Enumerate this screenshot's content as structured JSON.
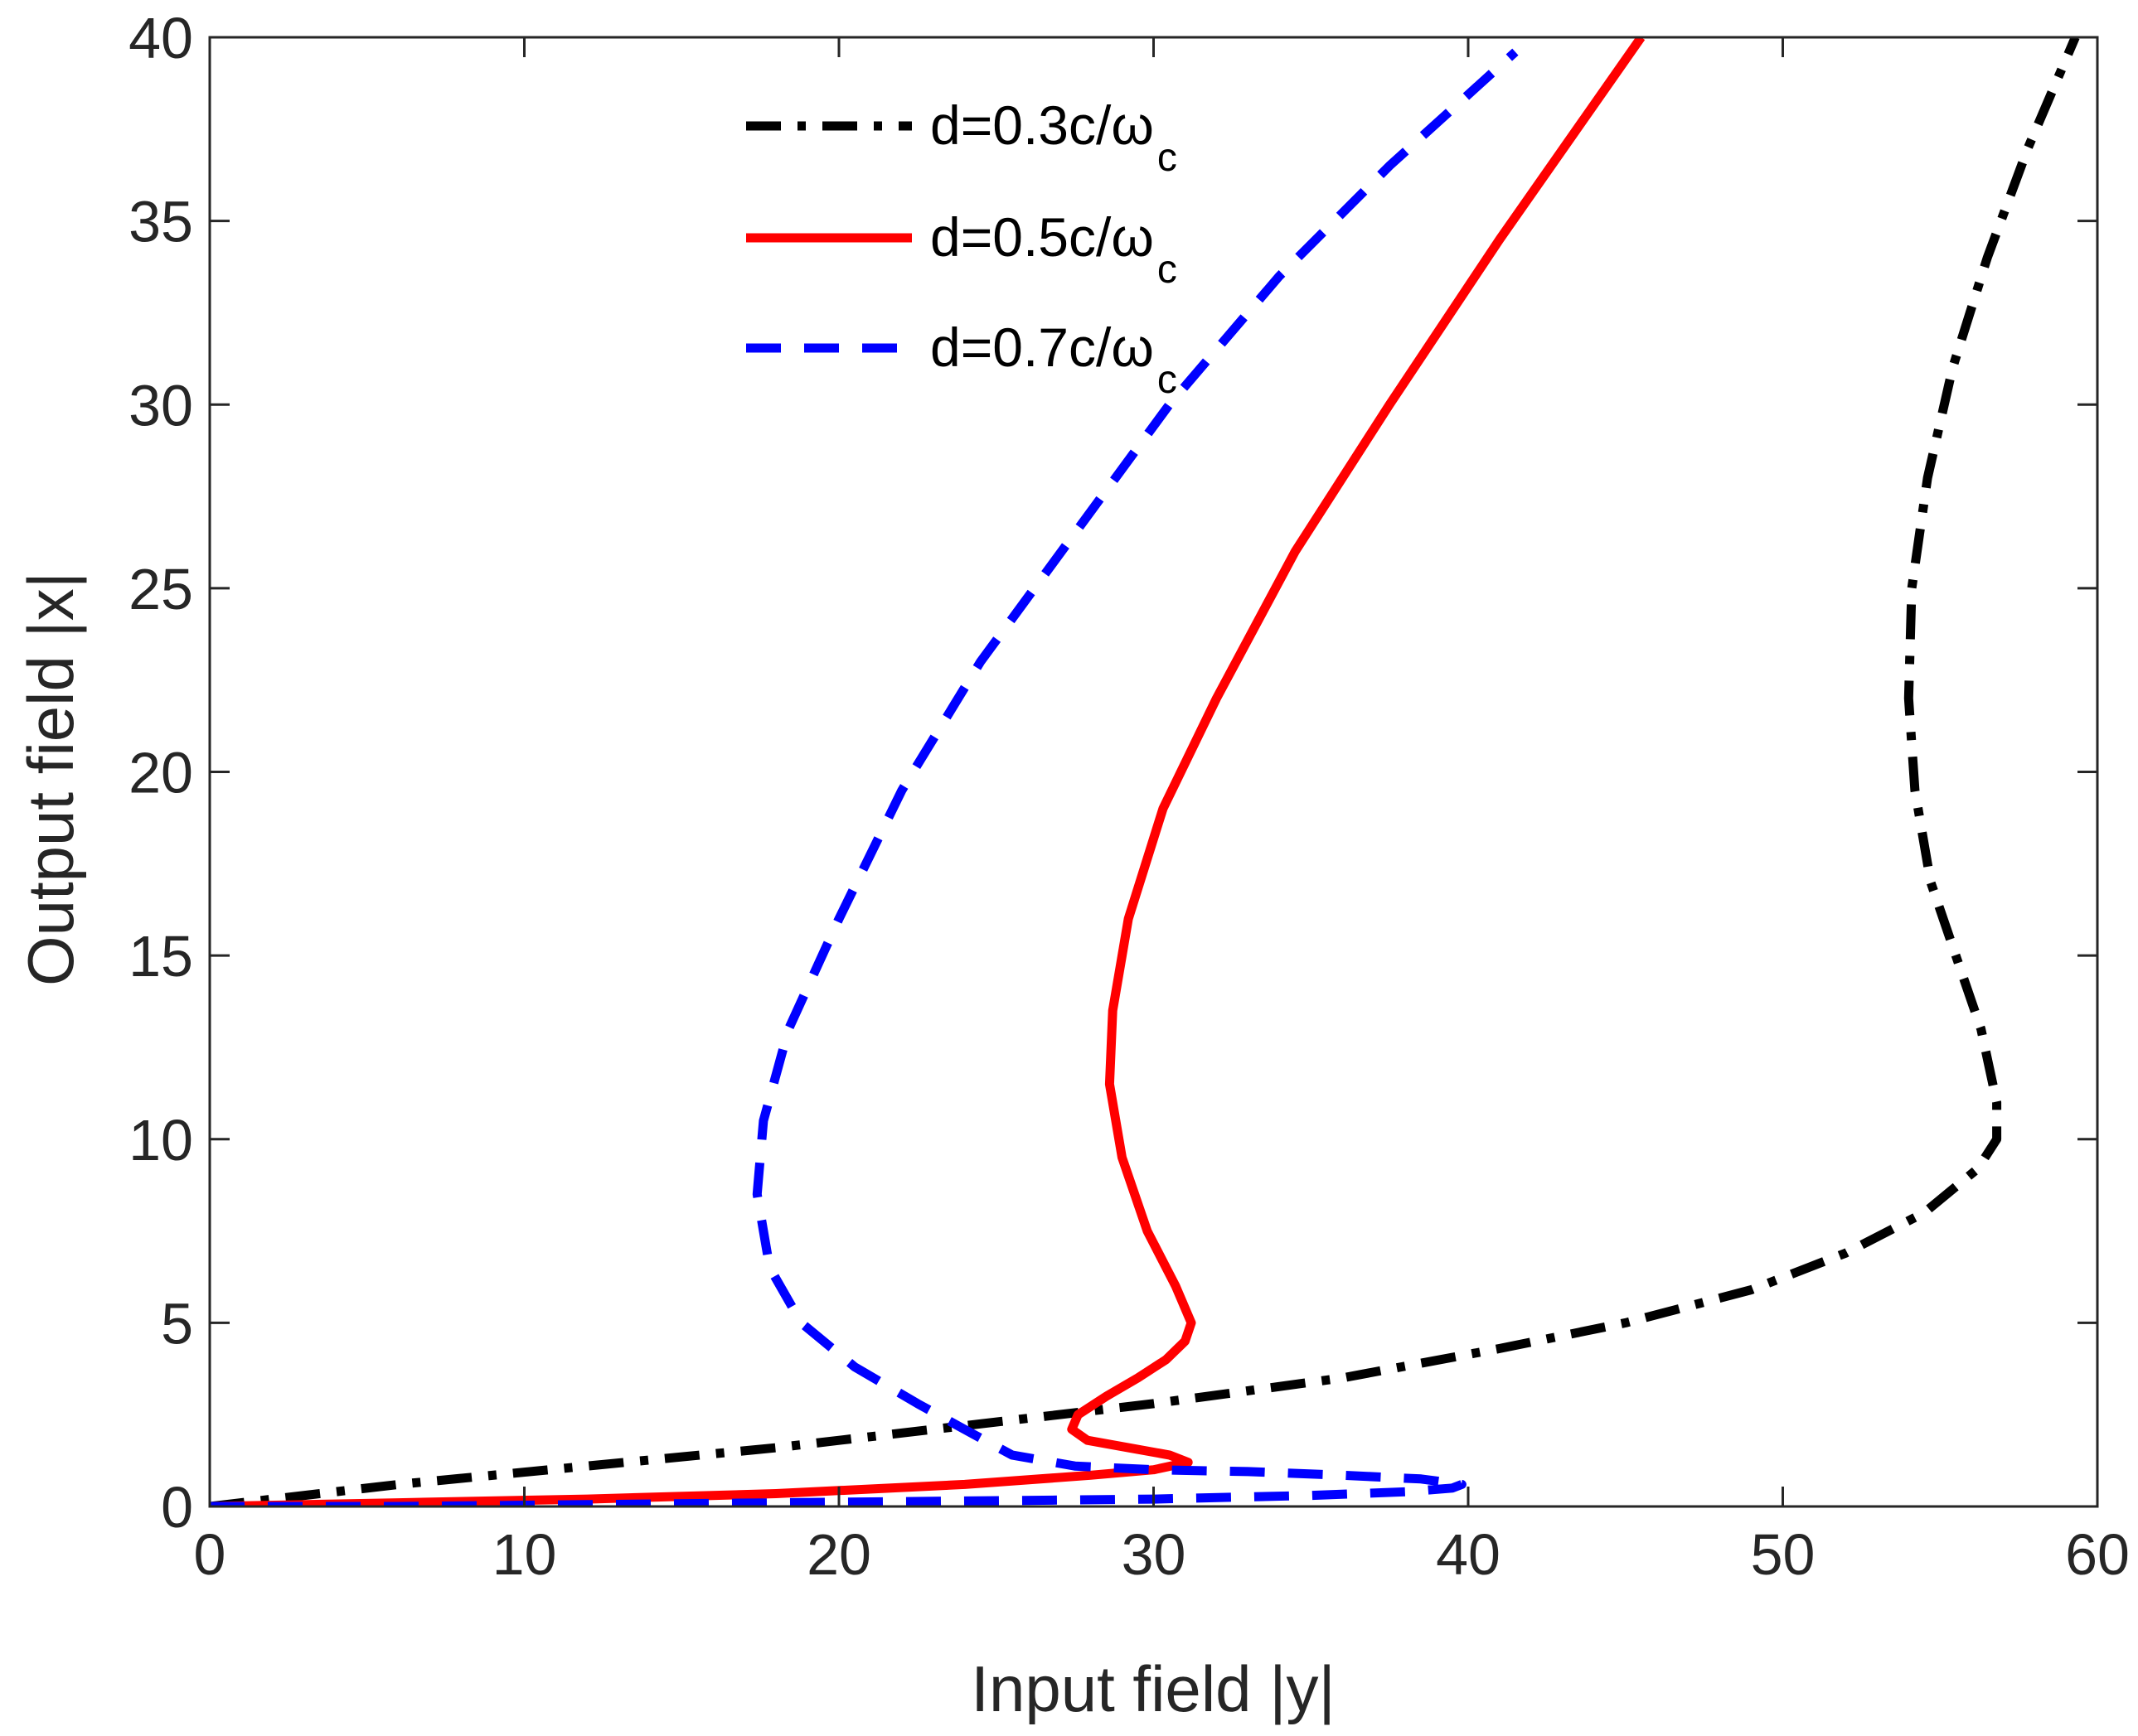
{
  "chart_data": {
    "type": "line",
    "title": "",
    "xlabel": "Input field |y|",
    "ylabel": "Output field |x|",
    "xlim": [
      0,
      60
    ],
    "ylim": [
      0,
      40
    ],
    "xticks": [
      "0",
      "10",
      "20",
      "30",
      "40",
      "50",
      "60"
    ],
    "yticks": [
      "0",
      "5",
      "10",
      "15",
      "20",
      "25",
      "30",
      "35",
      "40"
    ],
    "grid": false,
    "legend_position": "top-center",
    "series": [
      {
        "name": "d=0.3c/ωc",
        "label_main": "d=0.3c/ω",
        "label_sub": "c",
        "color": "#000000",
        "style": "dash-dot",
        "x": [
          0,
          6,
          12,
          18,
          24,
          30,
          36,
          41,
          45,
          49,
          52,
          54.5,
          56.2,
          56.8,
          56.8,
          56.3,
          55.5,
          54.7,
          54.2,
          54.0,
          54.1,
          54.6,
          55.4,
          56.5,
          57.8,
          59.3
        ],
        "y": [
          0,
          0.6,
          1.1,
          1.6,
          2.2,
          2.8,
          3.5,
          4.3,
          5.0,
          5.9,
          6.9,
          8.0,
          9.2,
          10.0,
          11.0,
          13.0,
          15.0,
          17.0,
          19.5,
          22.0,
          25.0,
          28.0,
          31.0,
          34.0,
          37.0,
          40.0
        ]
      },
      {
        "name": "d=0.5c/ωc",
        "label_main": "d=0.5c/ω",
        "label_sub": "c",
        "color": "#ff0000",
        "style": "solid",
        "x": [
          0,
          6,
          12,
          18,
          24,
          28,
          30,
          31.1,
          30.5,
          29.2,
          27.9,
          27.4,
          27.6,
          28.5,
          29.5,
          30.4,
          31.0,
          31.2,
          30.7,
          29.8,
          29.0,
          28.6,
          28.7,
          29.2,
          30.3,
          32.0,
          34.5,
          37.5,
          41,
          45.5
        ],
        "y": [
          0,
          0.1,
          0.2,
          0.35,
          0.6,
          0.85,
          1.0,
          1.2,
          1.4,
          1.6,
          1.8,
          2.1,
          2.5,
          3.0,
          3.5,
          4.0,
          4.5,
          5.0,
          6.0,
          7.5,
          9.5,
          11.5,
          13.5,
          16.0,
          19.0,
          22.0,
          26.0,
          30.0,
          34.5,
          40.0
        ]
      },
      {
        "name": "d=0.7c/ωc",
        "label_main": "d=0.7c/ω",
        "label_sub": "c",
        "color": "#0000ff",
        "style": "dashed",
        "x": [
          0,
          6,
          12,
          18,
          24,
          30,
          35,
          38,
          39.5,
          39.8,
          38.5,
          36,
          33,
          30,
          27.5,
          25.5,
          24.2,
          22.5,
          20.5,
          18.8,
          17.8,
          17.4,
          17.6,
          18.4,
          20,
          22,
          24.5,
          27.5,
          30.5,
          34,
          37.5,
          41.5
        ],
        "y": [
          0,
          0,
          0.05,
          0.1,
          0.15,
          0.2,
          0.3,
          0.4,
          0.5,
          0.6,
          0.75,
          0.85,
          0.95,
          1.0,
          1.1,
          1.4,
          2.0,
          2.8,
          3.8,
          5.0,
          6.5,
          8.5,
          10.5,
          13.0,
          16.0,
          19.5,
          23.0,
          26.5,
          30.0,
          33.5,
          36.5,
          39.6
        ]
      }
    ]
  }
}
